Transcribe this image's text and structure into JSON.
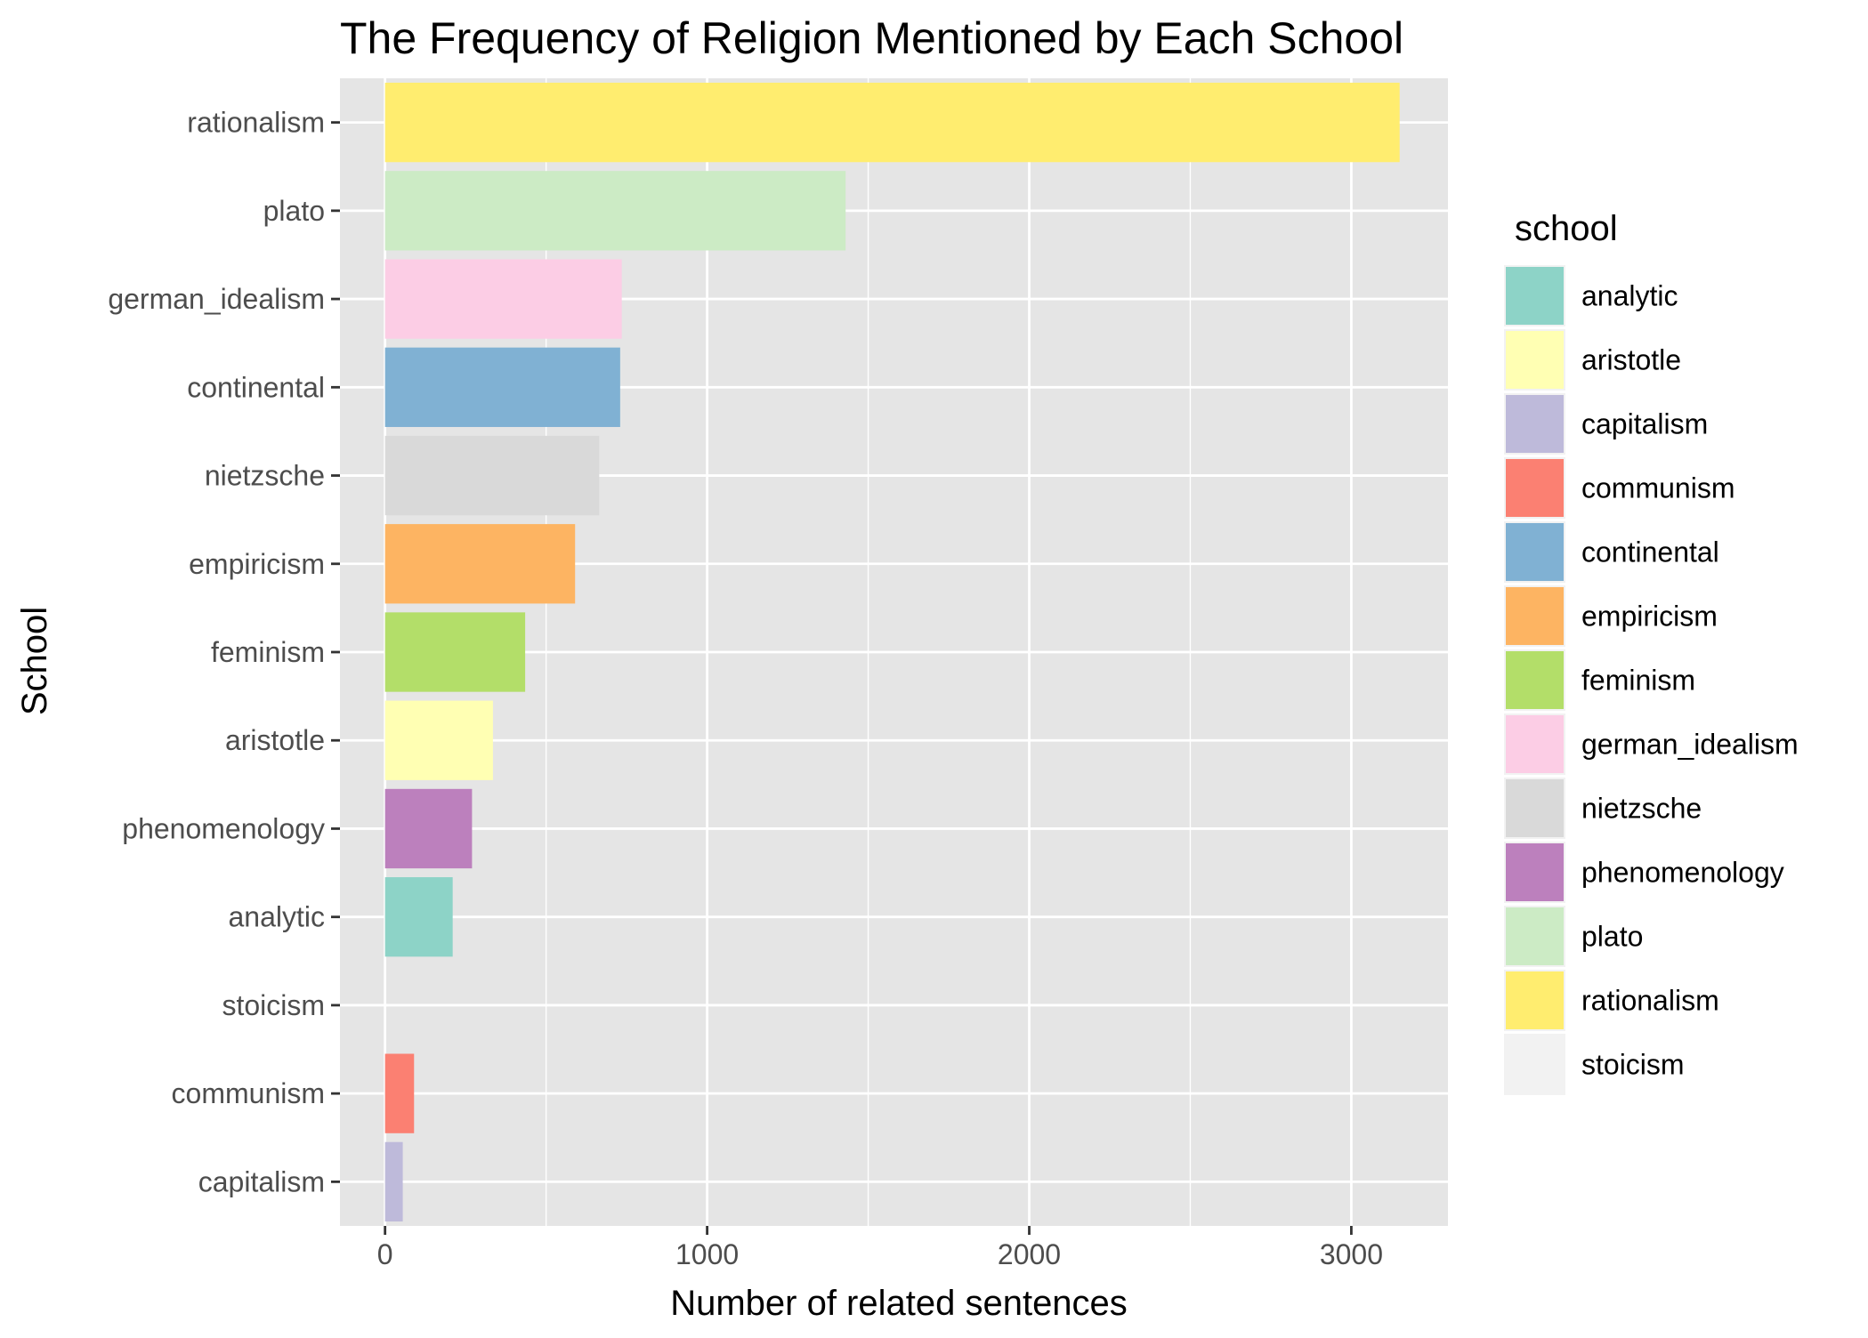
{
  "chart_data": {
    "type": "bar",
    "orientation": "horizontal",
    "title": "The Frequency of Religion Mentioned by Each School",
    "xlabel": "Number of related sentences",
    "ylabel": "School",
    "xlim": [
      -140,
      3300
    ],
    "x_ticks": [
      0,
      1000,
      2000,
      3000
    ],
    "x_minor_ticks": [
      500,
      1500,
      2500
    ],
    "grid": true,
    "categories": [
      "rationalism",
      "plato",
      "german_idealism",
      "continental",
      "nietzsche",
      "empiricism",
      "feminism",
      "aristotle",
      "phenomenology",
      "analytic",
      "stoicism",
      "communism",
      "capitalism"
    ],
    "values": [
      3150,
      1430,
      735,
      730,
      665,
      590,
      435,
      335,
      270,
      210,
      0,
      90,
      55
    ],
    "colors": {
      "rationalism": "#FFED6F",
      "plato": "#CCEBC5",
      "german_idealism": "#FCCDE5",
      "continental": "#80B1D3",
      "nietzsche": "#D9D9D9",
      "empiricism": "#FDB462",
      "feminism": "#B3DE69",
      "aristotle": "#FFFFB3",
      "phenomenology": "#BC80BD",
      "analytic": "#8DD3C7",
      "stoicism": "#F2F2F2",
      "communism": "#FB8072",
      "capitalism": "#BEBADA"
    },
    "legend": {
      "title": "school",
      "placement": "right",
      "entries": [
        "analytic",
        "aristotle",
        "capitalism",
        "communism",
        "continental",
        "empiricism",
        "feminism",
        "german_idealism",
        "nietzsche",
        "phenomenology",
        "plato",
        "rationalism",
        "stoicism"
      ]
    },
    "panel_background": "#E5E5E5",
    "grid_color": "#FFFFFF"
  }
}
